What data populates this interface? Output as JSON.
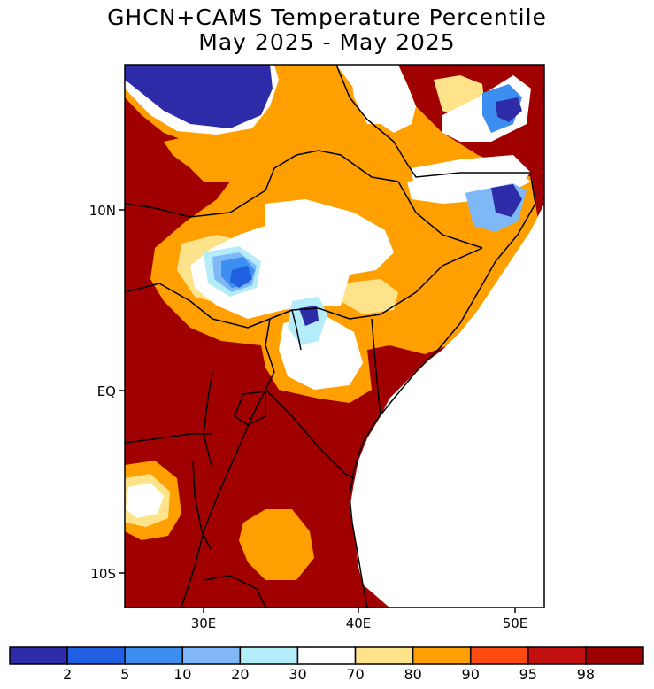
{
  "title_line1": "GHCN+CAMS Temperature Percentile",
  "title_line2": "May 2025 - May 2025",
  "y_axis_ticks": [
    "10N",
    "EQ",
    "10S"
  ],
  "x_axis_ticks": [
    "30E",
    "40E",
    "50E"
  ],
  "colorbar": {
    "labels": [
      "2",
      "5",
      "10",
      "20",
      "30",
      "70",
      "80",
      "90",
      "95",
      "98"
    ],
    "colors": [
      "#2d2ba8",
      "#1f5fe0",
      "#3c8ff0",
      "#7eb8f6",
      "#b4ecfa",
      "#ffffff",
      "#ffe38a",
      "#ff9f00",
      "#ff4a12",
      "#c21010",
      "#9e0000"
    ]
  }
}
